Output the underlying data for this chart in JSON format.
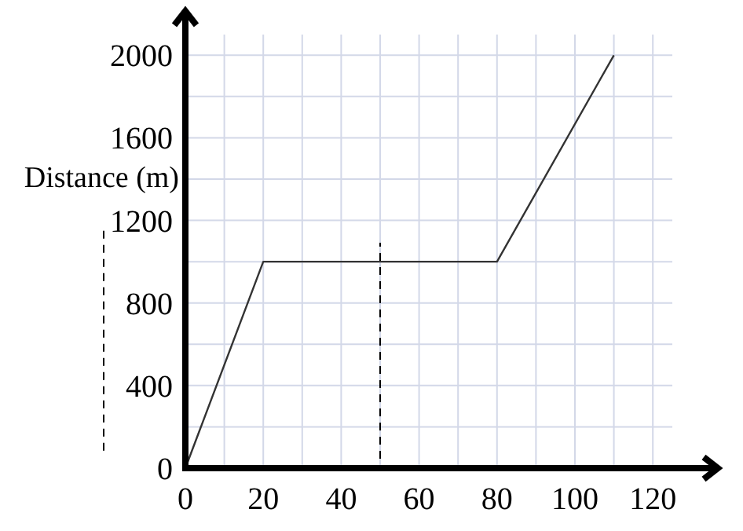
{
  "chart_data": {
    "type": "line",
    "ylabel": "Distance (m)",
    "x": [
      0,
      20,
      80,
      110
    ],
    "series": [
      {
        "color": "#333333",
        "values": [
          0,
          1000,
          1000,
          2000
        ]
      }
    ],
    "xlim": [
      0,
      125
    ],
    "ylim": [
      0,
      2100
    ],
    "xticks": [
      0,
      {
        "value": 10,
        "label": null
      },
      20,
      {
        "value": 30,
        "label": null
      },
      40,
      {
        "value": 50,
        "label": null
      },
      60,
      {
        "value": 70,
        "label": null
      },
      80,
      {
        "value": 90,
        "label": null
      },
      100,
      {
        "value": 110,
        "label": null
      },
      120
    ],
    "yticks": [
      0,
      {
        "value": 200,
        "label": null
      },
      400,
      {
        "value": 600,
        "label": null
      },
      800,
      {
        "value": 1000,
        "label": null
      },
      1200,
      {
        "value": 1400,
        "label": null
      },
      1600,
      {
        "value": 1800,
        "label": null
      },
      2000
    ],
    "grid": true,
    "marker": "none",
    "line_style": "solid",
    "ref_lines": [
      {
        "axis": "x",
        "value": 50,
        "line_style": "dashed",
        "color": "#000000"
      }
    ]
  }
}
